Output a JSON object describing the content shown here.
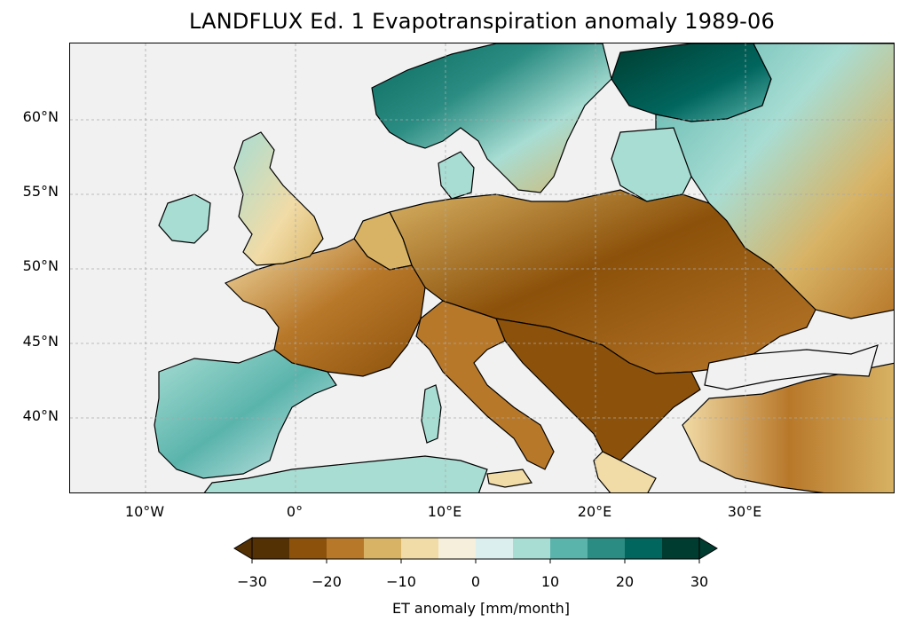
{
  "figure": {
    "title": "LANDFLUX Ed. 1 Evapotranspiration anomaly 1989-06"
  },
  "map": {
    "lat_ticks": [
      "60°N",
      "55°N",
      "50°N",
      "45°N",
      "40°N"
    ],
    "lon_ticks": [
      "10°W",
      "0°",
      "10°E",
      "20°E",
      "30°E"
    ],
    "ocean_color": "#f1f1f1",
    "gridlines": true,
    "gridline_style": "dashed"
  },
  "colorbar": {
    "label": "ET anomaly [mm/month]",
    "ticks": [
      "−30",
      "−20",
      "−10",
      "0",
      "10",
      "20",
      "30"
    ],
    "colors": [
      "#543005",
      "#8c510a",
      "#b8782a",
      "#d8b365",
      "#f1dba6",
      "#f5efdc",
      "#dcefef",
      "#a8ddd3",
      "#5ab4ac",
      "#2a8c82",
      "#01665e",
      "#003c30"
    ],
    "extend": "both"
  }
}
